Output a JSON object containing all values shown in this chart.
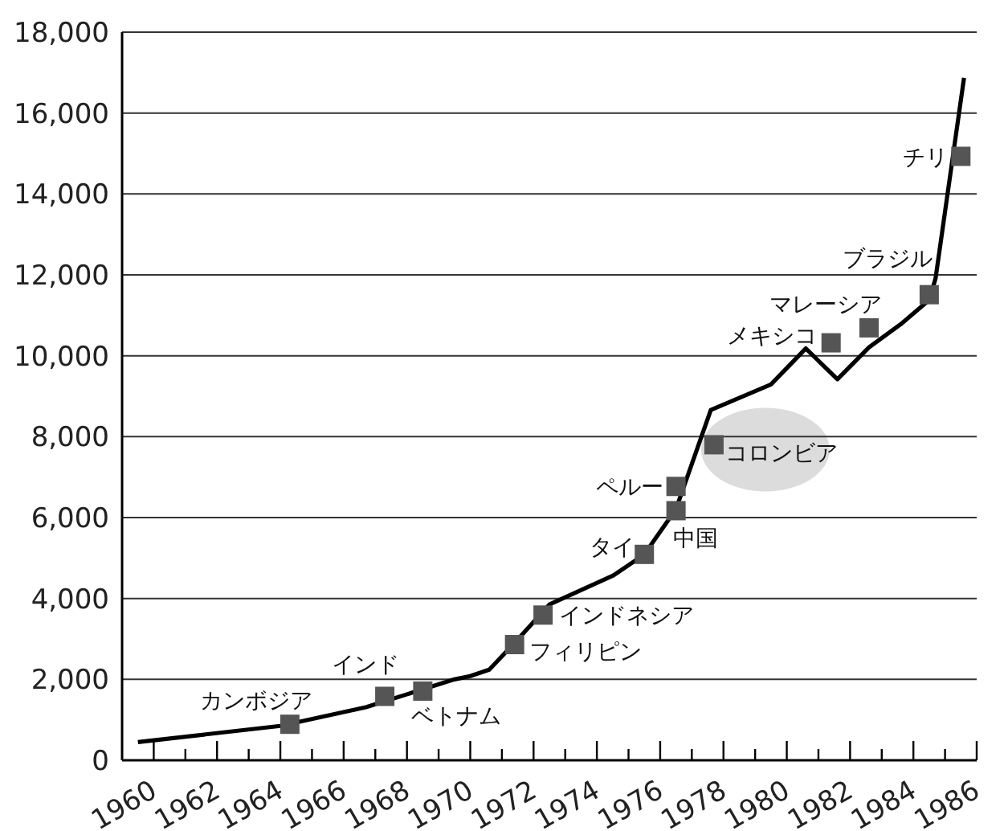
{
  "chart_data": {
    "type": "line",
    "xlim": [
      1959,
      1986
    ],
    "xticks": [
      1960,
      {
        "value": 1961,
        "label": null
      },
      1962,
      {
        "value": 1963,
        "label": null
      },
      1964,
      {
        "value": 1965,
        "label": null
      },
      1966,
      {
        "value": 1967,
        "label": null
      },
      1968,
      {
        "value": 1969,
        "label": null
      },
      1970,
      {
        "value": 1971,
        "label": null
      },
      1972,
      {
        "value": 1973,
        "label": null
      },
      1974,
      {
        "value": 1975,
        "label": null
      },
      1976,
      {
        "value": 1977,
        "label": null
      },
      1978,
      {
        "value": 1979,
        "label": null
      },
      1980,
      {
        "value": 1981,
        "label": null
      },
      1982,
      {
        "value": 1983,
        "label": null
      },
      1984,
      {
        "value": 1985,
        "label": null
      },
      1986
    ],
    "ylim": [
      0,
      18000
    ],
    "yticks": [
      0,
      {
        "value": 2000,
        "label": "2,000"
      },
      {
        "value": 4000,
        "label": "4,000"
      },
      {
        "value": 6000,
        "label": "6,000"
      },
      {
        "value": 8000,
        "label": "8,000"
      },
      {
        "value": 10000,
        "label": "10,000"
      },
      {
        "value": 12000,
        "label": "12,000"
      },
      {
        "value": 14000,
        "label": "14,000"
      },
      {
        "value": 16000,
        "label": "16,000"
      },
      {
        "value": 18000,
        "label": "18,000"
      }
    ],
    "grid": "y",
    "series": [
      {
        "color": "#000000",
        "marker": "none",
        "x": [
          1959.5,
          1964,
          1966.7,
          1969.5,
          1970,
          1970.6,
          1971.4,
          1972.5,
          1974.5,
          1975.5,
          1976.5,
          1977.6,
          1979.5,
          1980.6,
          1981.6,
          1982.6,
          1983.6,
          1984.5,
          1984.7,
          1985.6
        ],
        "values": [
          450,
          850,
          1310,
          2000,
          2080,
          2240,
          2900,
          3850,
          4560,
          5090,
          6210,
          8660,
          9290,
          10180,
          9420,
          10210,
          10780,
          11380,
          11910,
          16870
        ]
      },
      {
        "type": "scatter",
        "color": "#555555",
        "marker": "square",
        "x": [
          1964.3,
          1967.3,
          1968.5,
          1971.4,
          1972.3,
          1975.5,
          1976.5,
          1976.5,
          1977.7,
          1981.4,
          1982.6,
          1984.5,
          1985.5
        ],
        "values": [
          890,
          1580,
          1710,
          2860,
          3590,
          5090,
          6170,
          6770,
          7800,
          10320,
          10690,
          11510,
          14930
        ]
      }
    ],
    "annotations": [
      {
        "text": "カンボジア",
        "x": 1964.3,
        "y": 890
      },
      {
        "text": "インド",
        "x": 1967.3,
        "y": 1580
      },
      {
        "text": "ベトナム",
        "x": 1968.5,
        "y": 1710
      },
      {
        "text": "フィリピン",
        "x": 1971.4,
        "y": 2860
      },
      {
        "text": "インドネシア",
        "x": 1972.3,
        "y": 3590
      },
      {
        "text": "タイ",
        "x": 1975.5,
        "y": 5090
      },
      {
        "text": "中国",
        "x": 1976.5,
        "y": 6170
      },
      {
        "text": "ペルー",
        "x": 1976.5,
        "y": 6770
      },
      {
        "text": "コロンビア",
        "x": 1977.7,
        "y": 7800
      },
      {
        "text": "メキシコ",
        "x": 1981.4,
        "y": 10320
      },
      {
        "text": "マレーシア",
        "x": 1982.6,
        "y": 10690
      },
      {
        "text": "ブラジル",
        "x": 1984.5,
        "y": 11510
      },
      {
        "text": "チリ",
        "x": 1985.5,
        "y": 14930
      }
    ]
  }
}
